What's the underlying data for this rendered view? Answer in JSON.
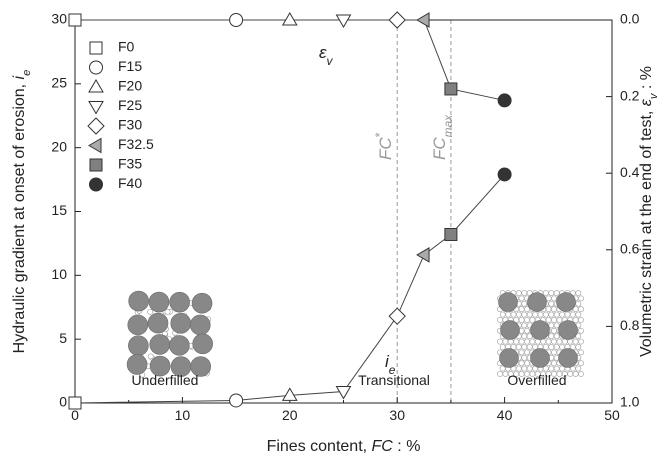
{
  "chart_data": {
    "type": "scatter",
    "xlabel": "Fines content, FC : %",
    "ylabel": "Hydraulic gradient at onset of erosion, i_e",
    "ylabel2": "Volumetric strain at the end of test, ε_v : %",
    "xlim": [
      0,
      50
    ],
    "ylim": [
      0,
      30
    ],
    "y2lim": [
      0.0,
      1.0
    ],
    "y2_inverted": true,
    "x_ticks": [
      0,
      10,
      20,
      30,
      40,
      50
    ],
    "y_ticks": [
      0,
      5,
      10,
      15,
      20,
      25,
      30
    ],
    "y2_ticks": [
      0.0,
      0.2,
      0.4,
      0.6,
      0.8,
      1.0
    ],
    "y2_tick_labels": [
      "0.0",
      "0.2",
      "0.4",
      "0.6",
      "0.8",
      "1.0"
    ],
    "grid": false,
    "legend_position": "top-left",
    "samples": [
      {
        "name": "F0",
        "marker": "square",
        "fill": "none",
        "fc": 0,
        "ie": 0.0,
        "ev": 0.0
      },
      {
        "name": "F15",
        "marker": "circle",
        "fill": "none",
        "fc": 15,
        "ie": 0.2,
        "ev": 0.0
      },
      {
        "name": "F20",
        "marker": "triangle-up",
        "fill": "none",
        "fc": 20,
        "ie": 0.6,
        "ev": 0.0
      },
      {
        "name": "F25",
        "marker": "triangle-down",
        "fill": "none",
        "fc": 25,
        "ie": 0.9,
        "ev": 0.0
      },
      {
        "name": "F30",
        "marker": "diamond",
        "fill": "none",
        "fc": 30,
        "ie": 6.8,
        "ev": 0.0
      },
      {
        "name": "F32.5",
        "marker": "triangle-left",
        "fill": "#aaaaaa",
        "fc": 32.5,
        "ie": 11.6,
        "ev": 0.0
      },
      {
        "name": "F35",
        "marker": "square",
        "fill": "#808080",
        "fc": 35,
        "ie": 13.2,
        "ev": 0.18
      },
      {
        "name": "F40",
        "marker": "circle",
        "fill": "#333333",
        "fc": 40,
        "ie": 17.9,
        "ev": 0.21
      }
    ],
    "reference_lines": [
      {
        "label": "FC*",
        "x": 30
      },
      {
        "label": "FC_max",
        "x": 35
      }
    ],
    "annotations": {
      "ie_label": "i_e",
      "ev_label": "ε_v",
      "regions": [
        "Underfilled",
        "Transitional",
        "Overfilled"
      ]
    }
  },
  "colors": {
    "axis": "#222222",
    "line": "#444444",
    "reference_line": "#999999",
    "big_grain": "#888888",
    "small_grain_fill": "#ffffff",
    "small_grain_stroke": "#9a9a9a"
  }
}
